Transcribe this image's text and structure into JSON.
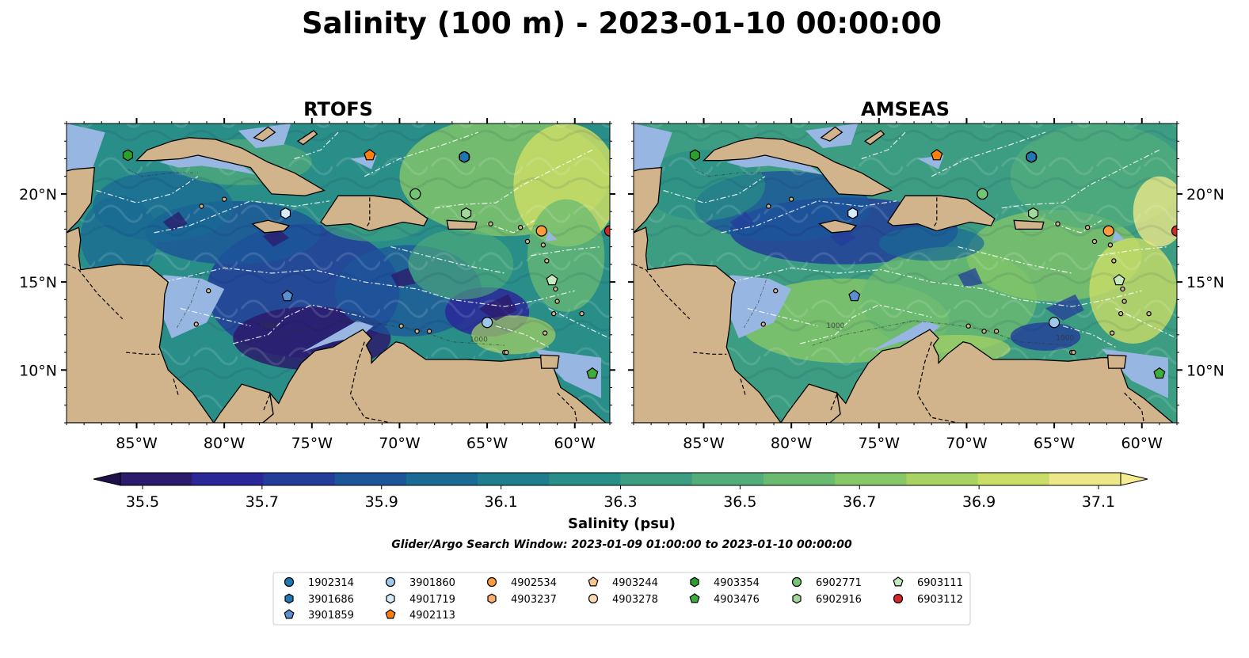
{
  "title": "Salinity (100 m) - 2023-01-10 00:00:00",
  "panels": [
    {
      "title": "RTOFS",
      "variant": "fresh"
    },
    {
      "title": "AMSEAS",
      "variant": "salty"
    }
  ],
  "map": {
    "lon_range": [
      -89,
      -58
    ],
    "lat_range": [
      7,
      24
    ],
    "lon_ticks": [
      {
        "value": -85,
        "label": "85°W"
      },
      {
        "value": -80,
        "label": "80°W"
      },
      {
        "value": -75,
        "label": "75°W"
      },
      {
        "value": -70,
        "label": "70°W"
      },
      {
        "value": -65,
        "label": "65°W"
      },
      {
        "value": -60,
        "label": "60°W"
      }
    ],
    "lat_ticks": [
      {
        "value": 20,
        "label": "20°N"
      },
      {
        "value": 15,
        "label": "15°N"
      },
      {
        "value": 10,
        "label": "10°N"
      }
    ],
    "contour_labels": [
      "1000",
      "1000"
    ],
    "colors": {
      "land": "#d2b48c",
      "shelf": "#97b6e1",
      "border": "#000000",
      "eez": "#ffffff"
    }
  },
  "colorbar": {
    "label": "Salinity (psu)",
    "ticks": [
      "35.5",
      "35.7",
      "35.9",
      "36.1",
      "36.3",
      "36.5",
      "36.7",
      "36.9",
      "37.1"
    ],
    "min": 35.5,
    "max": 37.1,
    "colors": [
      "#2c1a6b",
      "#2a2899",
      "#233e9a",
      "#1c559a",
      "#1a6a94",
      "#1f7d8e",
      "#2a8e88",
      "#3c9d82",
      "#52ad7a",
      "#6aba71",
      "#86c768",
      "#a8d262",
      "#cadd66",
      "#ece788"
    ]
  },
  "subtitle": "Glider/Argo Search Window: 2023-01-09 01:00:00 to 2023-01-10 00:00:00",
  "legend": [
    {
      "label": "1902314",
      "marker": "circle",
      "color": "#1f77b4"
    },
    {
      "label": "3901686",
      "marker": "hexagon",
      "color": "#1f77b4"
    },
    {
      "label": "3901859",
      "marker": "pentagon",
      "color": "#5b8fcf"
    },
    {
      "label": "3901860",
      "marker": "circle",
      "color": "#9ec9ec"
    },
    {
      "label": "4901719",
      "marker": "hexagon",
      "color": "#d6ecfa"
    },
    {
      "label": "4902113",
      "marker": "pentagon",
      "color": "#ff7f0e"
    },
    {
      "label": "4902534",
      "marker": "circle",
      "color": "#fd9a3e"
    },
    {
      "label": "4903237",
      "marker": "hexagon",
      "color": "#fdae6b"
    },
    {
      "label": "4903244",
      "marker": "pentagon",
      "color": "#fdc68e"
    },
    {
      "label": "4903278",
      "marker": "circle",
      "color": "#fdd9b0"
    },
    {
      "label": "4903354",
      "marker": "hexagon",
      "color": "#2ca02c"
    },
    {
      "label": "4903476",
      "marker": "pentagon",
      "color": "#3cae3c"
    },
    {
      "label": "6902771",
      "marker": "circle",
      "color": "#74c476"
    },
    {
      "label": "6902916",
      "marker": "hexagon",
      "color": "#a1d99b"
    },
    {
      "label": "6903111",
      "marker": "pentagon",
      "color": "#c7e9c0"
    },
    {
      "label": "6903112",
      "marker": "circle",
      "color": "#d62728"
    }
  ],
  "floats": [
    {
      "id": "1902314",
      "lon": -66.3,
      "lat": 22.1
    },
    {
      "id": "3901686",
      "lon": -66.3,
      "lat": 22.1
    },
    {
      "id": "3901859",
      "lon": -76.4,
      "lat": 14.2
    },
    {
      "id": "3901860",
      "lon": -65.0,
      "lat": 12.7
    },
    {
      "id": "4901719",
      "lon": -76.5,
      "lat": 18.9
    },
    {
      "id": "4902113",
      "lon": -71.7,
      "lat": 22.2
    },
    {
      "id": "4902534",
      "lon": -61.9,
      "lat": 17.9
    },
    {
      "id": "4903354",
      "lon": -85.5,
      "lat": 22.2
    },
    {
      "id": "4903476",
      "lon": -59.0,
      "lat": 9.8
    },
    {
      "id": "6902771",
      "lon": -69.1,
      "lat": 20.0
    },
    {
      "id": "6902916",
      "lon": -66.2,
      "lat": 18.9
    },
    {
      "id": "6903111",
      "lon": -61.3,
      "lat": 15.1
    },
    {
      "id": "6903112",
      "lon": -58.0,
      "lat": 17.9
    }
  ]
}
